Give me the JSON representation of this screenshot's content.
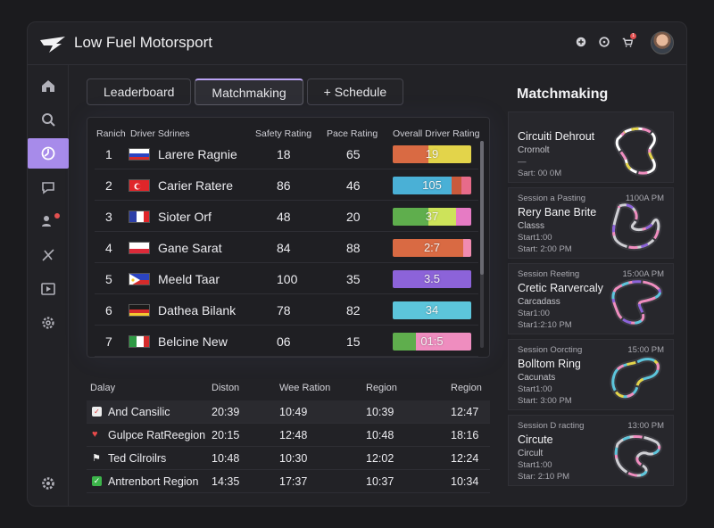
{
  "app": {
    "title": "Low Fuel Motorsport"
  },
  "topbar": {
    "icons": [
      "plus-circle-icon",
      "gamepad-icon",
      "cart-icon"
    ],
    "notification_count": "1"
  },
  "sidebar": {
    "items": [
      {
        "name": "home-icon"
      },
      {
        "name": "search-icon"
      },
      {
        "name": "steering-wheel-icon"
      },
      {
        "name": "chat-icon"
      },
      {
        "name": "users-icon"
      },
      {
        "name": "no-entry-icon"
      },
      {
        "name": "play-icon"
      },
      {
        "name": "settings-icon"
      }
    ],
    "bottom": {
      "name": "settings-icon"
    }
  },
  "tabs": [
    {
      "label": "Leaderboard"
    },
    {
      "label": "Matchmaking"
    },
    {
      "label": "+ Schedule"
    }
  ],
  "leaderboard": {
    "columns": [
      "Ranich",
      "Driver Sdrines",
      "Safety Rating",
      "Pace Rating",
      "Overall Driver Rating"
    ],
    "rows": [
      {
        "rank": "1",
        "driver": "Larere Ragnie",
        "safety": "18",
        "pace": "65",
        "overall": "19",
        "colors": [
          "#d96a43",
          "#d96a43",
          "#e3d44a",
          "#e3d44a"
        ],
        "split": [
          0.45,
          0.05,
          0.5
        ]
      },
      {
        "rank": "2",
        "driver": "Carier Ratere",
        "safety": "86",
        "pace": "46",
        "overall": "105",
        "colors": [
          "#4ab0d6",
          "#4ab0d6",
          "#c95a3c",
          "#e76b8a"
        ],
        "split": [
          0.75,
          0.13,
          0.12
        ]
      },
      {
        "rank": "3",
        "driver": "Sioter Orf",
        "safety": "48",
        "pace": "20",
        "overall": "37",
        "colors": [
          "#5fae4d",
          "#5fae4d",
          "#cde35a",
          "#e67bc4"
        ],
        "split": [
          0.45,
          0.35,
          0.2
        ]
      },
      {
        "rank": "4",
        "driver": "Gane Sarat",
        "safety": "84",
        "pace": "88",
        "overall": "2:7",
        "colors": [
          "#d96a43",
          "#d96a43",
          "#d96a43",
          "#f08bb0"
        ],
        "split": [
          0.6,
          0.3,
          0.1
        ]
      },
      {
        "rank": "5",
        "driver": "Meeld Taar",
        "safety": "100",
        "pace": "35",
        "overall": "3.5",
        "colors": [
          "#8c63d9",
          "#8c63d9",
          "#8c63d9",
          "#8c63d9"
        ],
        "split": [
          0.5,
          0.3,
          0.2
        ]
      },
      {
        "rank": "6",
        "driver": "Dathea Bilank",
        "safety": "78",
        "pace": "82",
        "overall": "34",
        "colors": [
          "#5cc5db",
          "#5cc5db",
          "#5cc5db",
          "#5cc5db"
        ],
        "split": [
          0.5,
          0.3,
          0.2
        ]
      },
      {
        "rank": "7",
        "driver": "Belcine New",
        "safety": "06",
        "pace": "15",
        "overall": "01:5",
        "colors": [
          "#5fae4d",
          "#b9d87a",
          "#ef8dbf",
          "#ef8dbf"
        ],
        "split": [
          0.3,
          0.3,
          0.4
        ]
      }
    ],
    "flags": [
      "russia",
      "turkey",
      "france",
      "poland",
      "philippines",
      "germany",
      "italy"
    ]
  },
  "schedule": {
    "columns": [
      "Dalay",
      "Diston",
      "Wee Ration",
      "Region",
      "Region"
    ],
    "rows": [
      {
        "icon": "calendar-icon",
        "name": "And Cansilic",
        "c1": "20:39",
        "c2": "10:49",
        "c3": "10:39",
        "c4": "12:47"
      },
      {
        "icon": "heart-icon",
        "name": "Gulpce RatReegion",
        "c1": "20:15",
        "c2": "12:48",
        "c3": "10:48",
        "c4": "18:16"
      },
      {
        "icon": "flag-icon",
        "name": "Ted Cilroilrs",
        "c1": "10:48",
        "c2": "10:30",
        "c3": "12:02",
        "c4": "12:24"
      },
      {
        "icon": "check-icon",
        "name": "Antrenbort Region",
        "c1": "14:35",
        "c2": "17:37",
        "c3": "10:37",
        "c4": "10:34"
      }
    ]
  },
  "matchmaking": {
    "title": "Matchmaking",
    "cards": [
      {
        "session": "",
        "time": "",
        "name": "Circuiti Dehrout",
        "class": "Crornolt",
        "line1": "—",
        "line2": "Sart: 00 0M"
      },
      {
        "session": "Session a Pasting",
        "time": "1100A PM",
        "name": "Rery Bane Brite",
        "class": "Classs",
        "line1": "Start1:00",
        "line2": "Start: 2:00 PM"
      },
      {
        "session": "Session Reeting",
        "time": "15:00A PM",
        "name": "Cretic Rarvercaly",
        "class": "Carcadass",
        "line1": "Star1:00",
        "line2": "Star1:2:10 PM"
      },
      {
        "session": "Session Oorcting",
        "time": "15:00 PM",
        "name": "Bolltom Ring",
        "class": "Cacunats",
        "line1": "Start1:00",
        "line2": "Start: 3:00 PM"
      },
      {
        "session": "Session D racting",
        "time": "13:00 PM",
        "name": "Circute",
        "class": "Circult",
        "line1": "Start1:00",
        "line2": "Star: 2:10 PM"
      }
    ]
  }
}
